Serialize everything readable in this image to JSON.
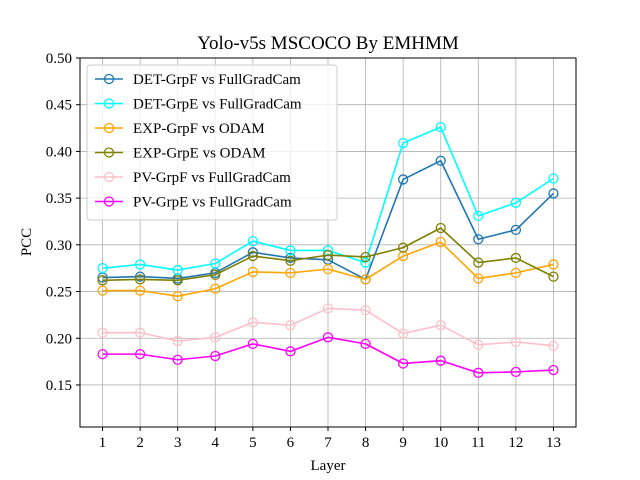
{
  "chart_data": {
    "type": "line",
    "title": "Yolo-v5s MSCOCO By EMHMM",
    "xlabel": "Layer",
    "ylabel": "PCC",
    "x": [
      1,
      2,
      3,
      4,
      5,
      6,
      7,
      8,
      9,
      10,
      11,
      12,
      13
    ],
    "xticks": [
      "1",
      "2",
      "3",
      "4",
      "5",
      "6",
      "7",
      "8",
      "9",
      "10",
      "11",
      "12",
      "13"
    ],
    "ylim": [
      0.105,
      0.5
    ],
    "yticks": [
      "0.15",
      "0.20",
      "0.25",
      "0.30",
      "0.35",
      "0.40",
      "0.45",
      "0.50"
    ],
    "grid": true,
    "legend_position": "top-left",
    "series": [
      {
        "name": "DET-GrpF vs FullGradCam",
        "color": "#1f77b4",
        "values": [
          0.265,
          0.266,
          0.264,
          0.27,
          0.292,
          0.286,
          0.284,
          0.263,
          0.37,
          0.39,
          0.306,
          0.316,
          0.355
        ]
      },
      {
        "name": "DET-GrpE vs FullGradCam",
        "color": "#00ffff",
        "values": [
          0.275,
          0.279,
          0.273,
          0.28,
          0.304,
          0.294,
          0.294,
          0.281,
          0.409,
          0.426,
          0.331,
          0.345,
          0.371
        ]
      },
      {
        "name": "EXP-GrpF vs ODAM",
        "color": "#ffa500",
        "values": [
          0.251,
          0.251,
          0.245,
          0.253,
          0.271,
          0.27,
          0.274,
          0.263,
          0.288,
          0.303,
          0.264,
          0.27,
          0.279
        ]
      },
      {
        "name": "EXP-GrpE vs ODAM",
        "color": "#808000",
        "values": [
          0.262,
          0.263,
          0.262,
          0.268,
          0.288,
          0.283,
          0.289,
          0.287,
          0.297,
          0.318,
          0.281,
          0.286,
          0.266
        ]
      },
      {
        "name": "PV-GrpF vs FullGradCam",
        "color": "#ffc0cb",
        "values": [
          0.206,
          0.206,
          0.197,
          0.201,
          0.217,
          0.214,
          0.232,
          0.23,
          0.205,
          0.214,
          0.193,
          0.196,
          0.192
        ]
      },
      {
        "name": "PV-GrpE vs FullGradCam",
        "color": "#ff00ff",
        "values": [
          0.183,
          0.183,
          0.177,
          0.181,
          0.194,
          0.186,
          0.201,
          0.194,
          0.173,
          0.176,
          0.163,
          0.164,
          0.166
        ]
      }
    ]
  }
}
